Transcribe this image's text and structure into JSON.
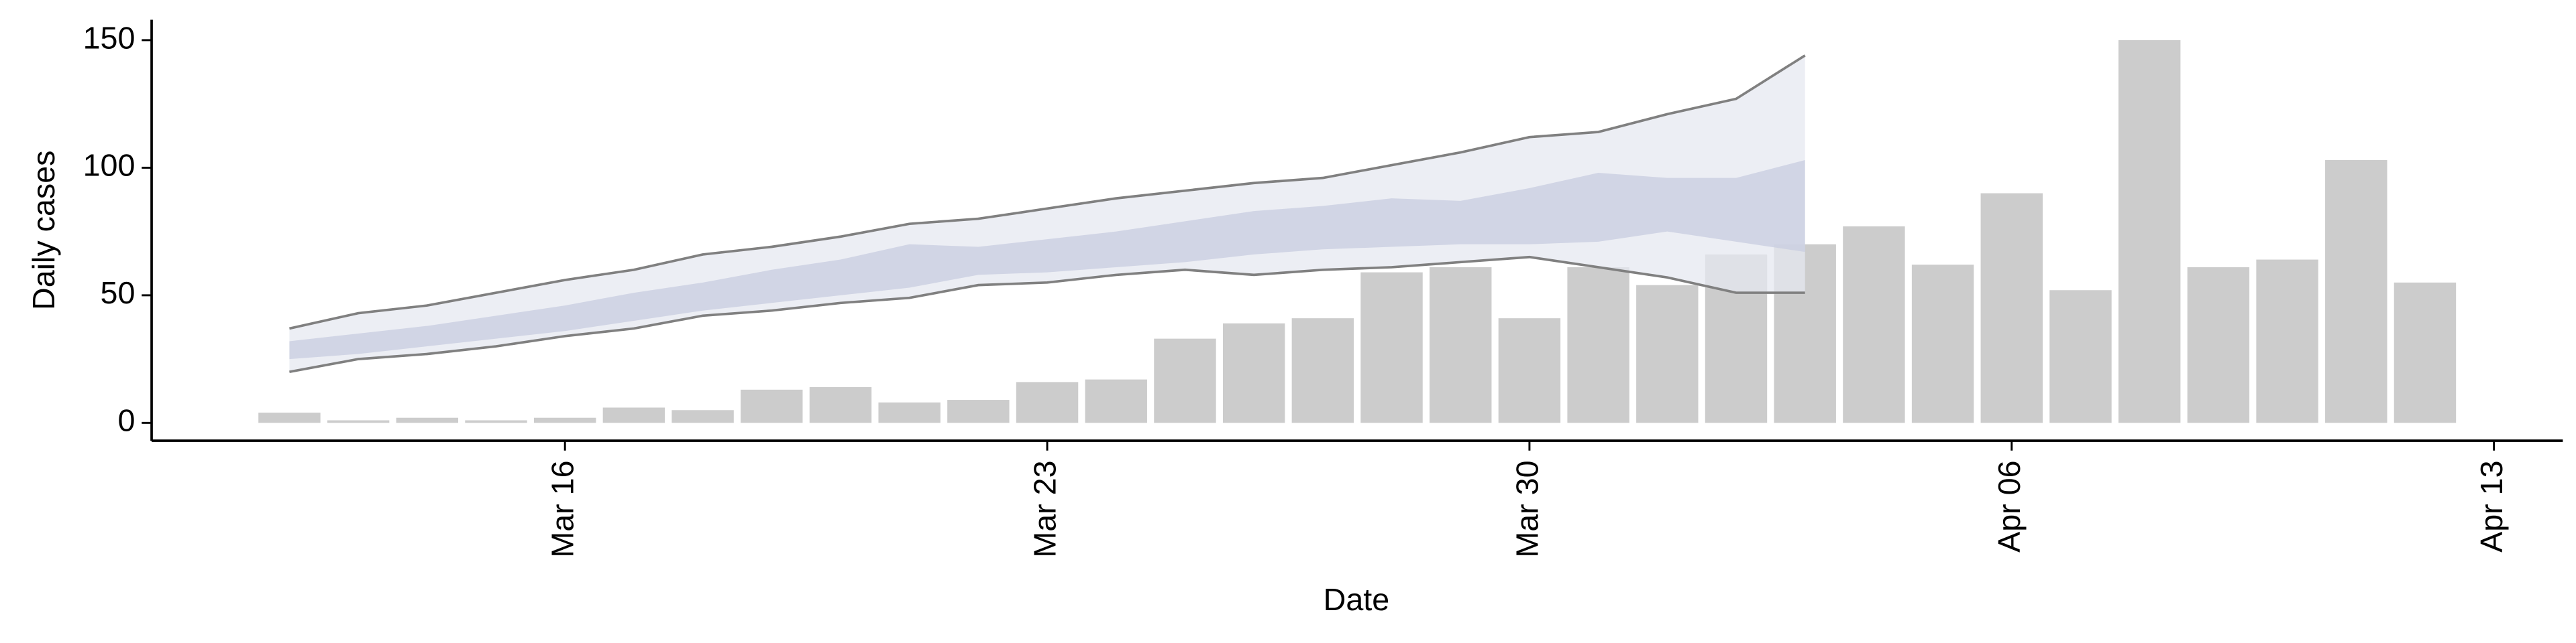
{
  "chart_data": {
    "type": "bar",
    "x_label": "Date",
    "y_label": "Daily cases",
    "x": [
      "Mar 12",
      "Mar 13",
      "Mar 14",
      "Mar 15",
      "Mar 16",
      "Mar 17",
      "Mar 18",
      "Mar 19",
      "Mar 20",
      "Mar 21",
      "Mar 22",
      "Mar 23",
      "Mar 24",
      "Mar 25",
      "Mar 26",
      "Mar 27",
      "Mar 28",
      "Mar 29",
      "Mar 30",
      "Mar 31",
      "Apr 01",
      "Apr 02",
      "Apr 03",
      "Apr 04",
      "Apr 05",
      "Apr 06",
      "Apr 07",
      "Apr 08",
      "Apr 09",
      "Apr 10",
      "Apr 11",
      "Apr 12"
    ],
    "values": [
      4,
      1,
      2,
      1,
      2,
      6,
      5,
      13,
      14,
      8,
      9,
      16,
      17,
      33,
      39,
      41,
      59,
      61,
      41,
      61,
      54,
      66,
      70,
      77,
      62,
      90,
      52,
      150,
      61,
      64,
      103,
      55
    ],
    "color": "#cccccc",
    "band_x": [
      "Mar 12",
      "Mar 13",
      "Mar 14",
      "Mar 15",
      "Mar 16",
      "Mar 17",
      "Mar 18",
      "Mar 19",
      "Mar 20",
      "Mar 21",
      "Mar 22",
      "Mar 23",
      "Mar 24",
      "Mar 25",
      "Mar 26",
      "Mar 27",
      "Mar 28",
      "Mar 29",
      "Mar 30",
      "Mar 31",
      "Apr 01",
      "Apr 02",
      "Apr 03"
    ],
    "bands": [
      {
        "color": "#e6e8f0",
        "line_color": "#808080",
        "upper": [
          37,
          43,
          46,
          51,
          56,
          60,
          66,
          69,
          73,
          78,
          80,
          84,
          88,
          91,
          94,
          96,
          101,
          106,
          112,
          114,
          121,
          127,
          144
        ],
        "lower": [
          20,
          25,
          27,
          30,
          34,
          37,
          42,
          44,
          47,
          49,
          54,
          55,
          58,
          60,
          58,
          60,
          61,
          63,
          65,
          61,
          57,
          51,
          51
        ]
      },
      {
        "color": "#c8cce0",
        "upper": [
          32,
          35,
          38,
          42,
          46,
          51,
          55,
          60,
          64,
          70,
          69,
          72,
          75,
          79,
          83,
          85,
          88,
          87,
          92,
          98,
          96,
          96,
          103
        ],
        "lower": [
          25,
          27,
          30,
          33,
          36,
          40,
          44,
          47,
          50,
          53,
          58,
          59,
          61,
          63,
          66,
          68,
          69,
          70,
          70,
          71,
          75,
          71,
          67
        ]
      }
    ],
    "xlim": [
      "Mar 10",
      "Apr 14"
    ],
    "xticks": [
      "Mar 16",
      "Mar 23",
      "Mar 30",
      "Apr 06",
      "Apr 13"
    ],
    "ylim": [
      -7,
      158
    ],
    "yticks": [
      0,
      50,
      100,
      150
    ]
  }
}
